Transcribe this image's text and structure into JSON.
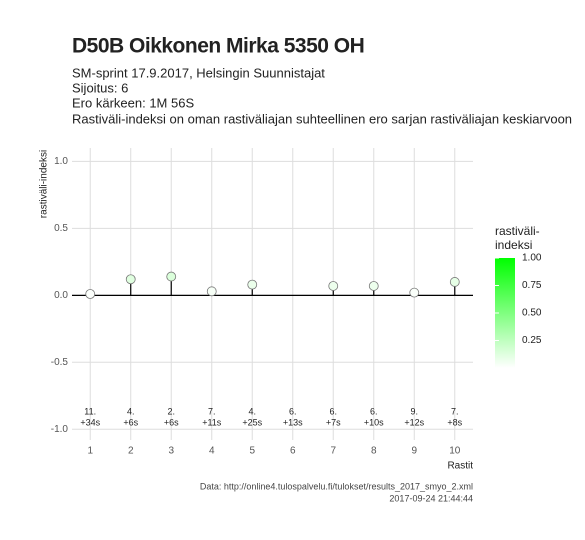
{
  "chart_data": {
    "type": "lollipop",
    "title": "D50B Oikkonen Mirka 5350 OH",
    "subtitle": [
      "SM-sprint 17.9.2017, Helsingin Suunnistajat",
      "Sijoitus: 6",
      "Ero kärkeen: 1M 56S",
      "Rastiväli-indeksi on oman rastiväliajan suhteellinen ero sarjan rastiväliajan keskiarvoon"
    ],
    "x_label": "Rastit",
    "y_label": "rastiväli-indeksi",
    "x": [
      1,
      2,
      3,
      4,
      5,
      6,
      7,
      8,
      9,
      10
    ],
    "values": [
      0.01,
      0.12,
      0.14,
      0.03,
      0.08,
      null,
      0.07,
      0.07,
      0.02,
      0.1
    ],
    "rank_labels": [
      "11.",
      "4.",
      "2.",
      "7.",
      "4.",
      "6.",
      "6.",
      "6.",
      "9.",
      "7."
    ],
    "time_labels": [
      "+34s",
      "+6s",
      "+6s",
      "+11s",
      "+25s",
      "+13s",
      "+7s",
      "+10s",
      "+12s",
      "+8s"
    ],
    "xlim": [
      0.55,
      10.45
    ],
    "xticks": [
      1,
      2,
      3,
      4,
      5,
      6,
      7,
      8,
      9,
      10
    ],
    "ylim": [
      -1.08,
      1.1
    ],
    "yticks": [
      {
        "value": 1,
        "label": "1.0"
      },
      0.5,
      {
        "value": 0,
        "label": "0.0"
      },
      -0.5,
      {
        "value": -1,
        "label": "-1.0"
      }
    ],
    "grid": true,
    "legend_title": [
      "rastiväli-",
      "indeksi"
    ],
    "colorbar": {
      "low": "#ffffff",
      "high": "#00ff00",
      "lim": [
        0,
        1
      ],
      "ticks": [
        {
          "value": 1,
          "label": "1.00"
        },
        {
          "value": 0.75,
          "label": "0.75"
        },
        {
          "value": 0.5,
          "label": "0.50"
        },
        {
          "value": 0.25,
          "label": "0.25"
        }
      ]
    },
    "caption": [
      "Data: http://online4.tulospalvelu.fi/tulokset/results_2017_smyo_2.xml",
      "2017-09-24 21:44:44"
    ]
  }
}
